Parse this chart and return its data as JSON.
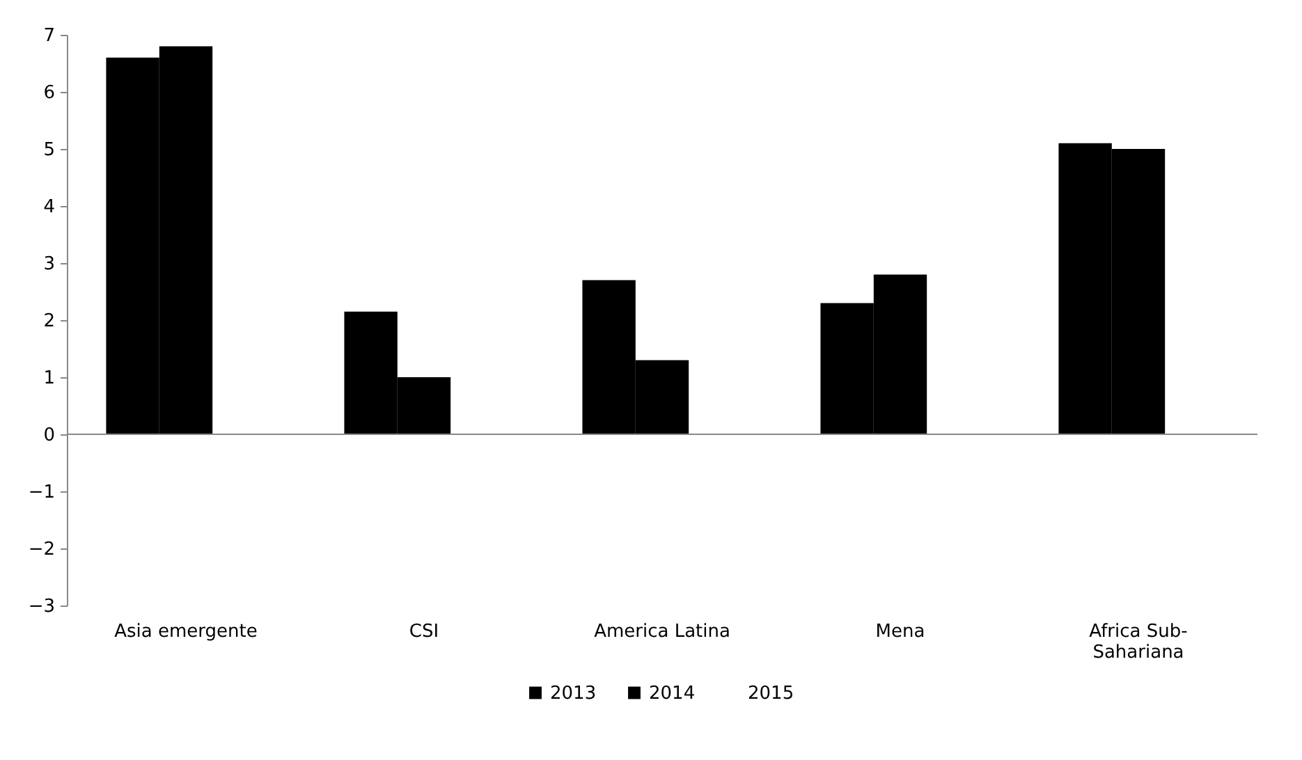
{
  "chart_data": {
    "type": "bar",
    "categories": [
      "Asia emergente",
      "CSI",
      "America Latina",
      "Mena",
      "Africa Sub-Sahariana"
    ],
    "series": [
      {
        "name": "2013",
        "color": "#000000",
        "values": [
          6.6,
          2.15,
          2.7,
          2.3,
          5.1
        ]
      },
      {
        "name": "2014",
        "color": "#000000",
        "values": [
          6.8,
          1.0,
          1.3,
          2.8,
          5.0
        ]
      },
      {
        "name": "2015",
        "values": [
          null,
          null,
          null,
          null,
          null
        ]
      }
    ],
    "ylim": [
      -3,
      7
    ],
    "yticks": [
      -3,
      -2,
      -1,
      0,
      1,
      2,
      3,
      4,
      5,
      6,
      7
    ],
    "legend": "bottom"
  }
}
